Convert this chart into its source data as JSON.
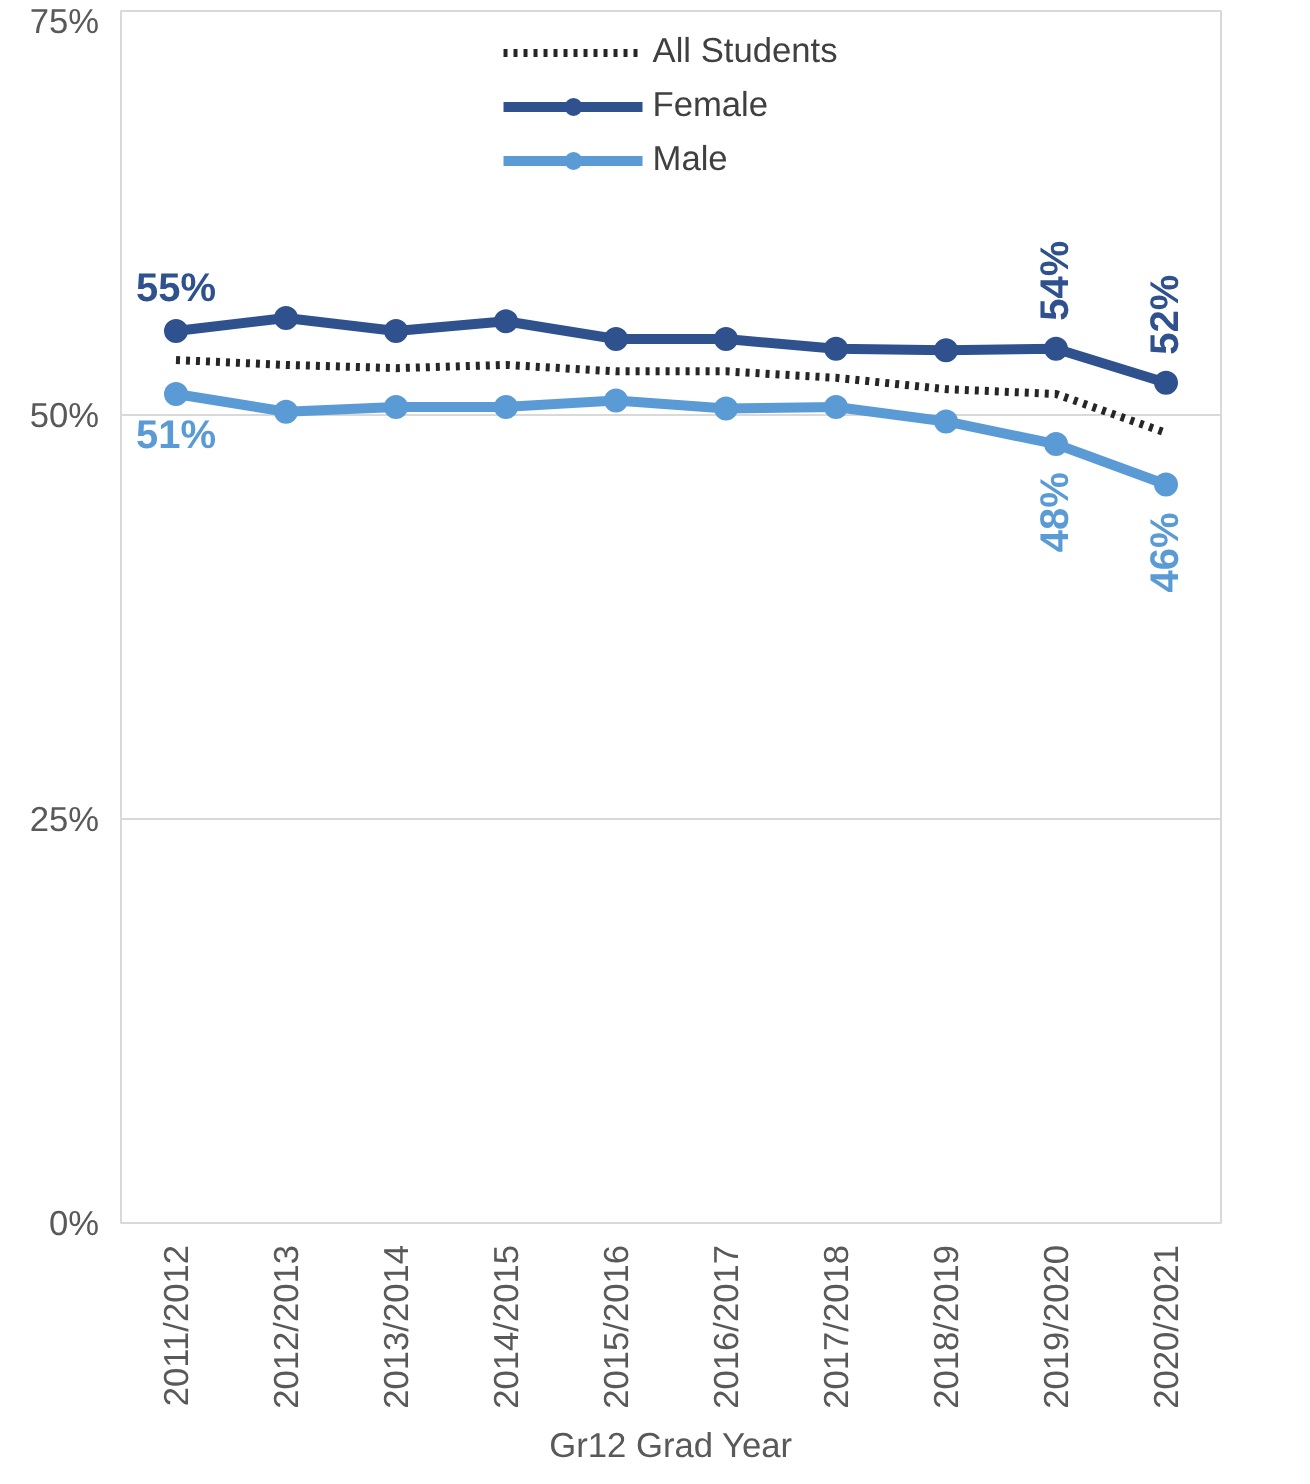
{
  "chart_data": {
    "type": "line",
    "xlabel": "Gr12 Grad Year",
    "categories": [
      "2011/2012",
      "2012/2013",
      "2013/2014",
      "2014/2015",
      "2015/2016",
      "2016/2017",
      "2017/2018",
      "2018/2019",
      "2019/2020",
      "2020/2021"
    ],
    "series": [
      {
        "name": "All Students",
        "color": "#262626",
        "marker": "none",
        "line_style": "dotted",
        "values": [
          53.4,
          53.1,
          52.9,
          53.1,
          52.7,
          52.7,
          52.3,
          51.6,
          51.3,
          48.9
        ]
      },
      {
        "name": "Female",
        "color": "#2f528f",
        "marker": "circle",
        "line_style": "solid",
        "values": [
          55.2,
          56.0,
          55.2,
          55.8,
          54.7,
          54.7,
          54.1,
          54.0,
          54.1,
          52.0
        ],
        "value_labels": [
          "55%",
          null,
          null,
          null,
          null,
          null,
          null,
          null,
          "54%",
          "52%"
        ]
      },
      {
        "name": "Male",
        "color": "#5b9bd5",
        "marker": "circle",
        "line_style": "solid",
        "values": [
          51.3,
          50.2,
          50.5,
          50.5,
          50.9,
          50.4,
          50.5,
          49.6,
          48.2,
          45.7
        ],
        "value_labels": [
          "51%",
          null,
          null,
          null,
          null,
          null,
          null,
          null,
          "48%",
          "46%"
        ]
      }
    ],
    "ylim": [
      0,
      75
    ],
    "yticks": [
      {
        "value": 0,
        "label": "0%"
      },
      {
        "value": 25,
        "label": "25%"
      },
      {
        "value": 50,
        "label": "50%"
      },
      {
        "value": 75,
        "label": "75%"
      }
    ],
    "grid": "y",
    "legend": "top"
  }
}
